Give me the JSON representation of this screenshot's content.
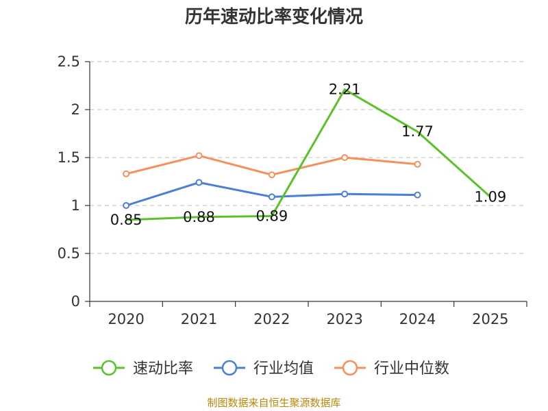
{
  "chart_data": {
    "type": "line",
    "title": "历年速动比率变化情况",
    "categories": [
      "2020",
      "2021",
      "2022",
      "2023",
      "2024",
      "2025"
    ],
    "xlabel": "",
    "ylabel": "",
    "ylim": [
      0,
      2.5
    ],
    "yticks": [
      "0",
      "0.5",
      "1",
      "1.5",
      "2",
      "2.5"
    ],
    "grid": true,
    "legend_position": "bottom",
    "series": [
      {
        "name": "速动比率",
        "color": "#5ac12a",
        "values": [
          0.85,
          0.88,
          0.89,
          2.21,
          1.77,
          1.09
        ],
        "labels": [
          "0.85",
          "0.88",
          "0.89",
          "2.21",
          "1.77",
          "1.09"
        ],
        "show_markers": false
      },
      {
        "name": "行业均值",
        "color": "#4a7fd6",
        "values": [
          1.0,
          1.24,
          1.09,
          1.12,
          1.11,
          null
        ],
        "show_markers": true
      },
      {
        "name": "行业中位数",
        "color": "#f5905a",
        "values": [
          1.33,
          1.52,
          1.32,
          1.5,
          1.43,
          null
        ],
        "show_markers": true
      }
    ],
    "source": "制图数据来自恒生聚源数据库"
  }
}
